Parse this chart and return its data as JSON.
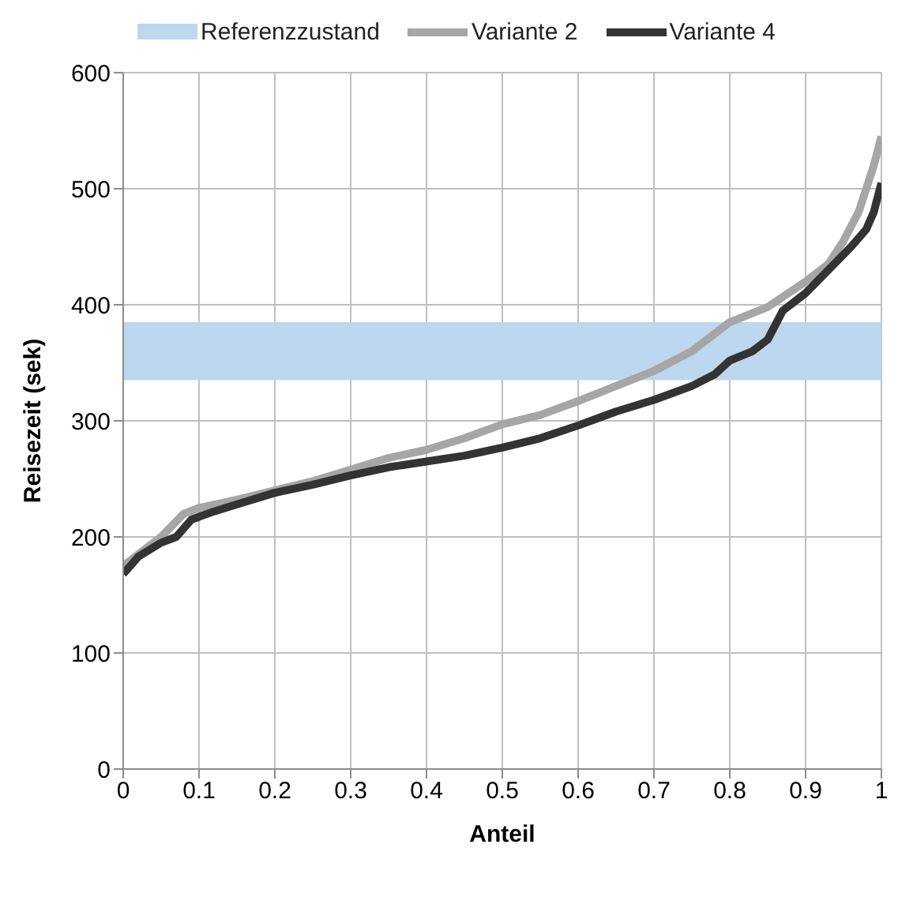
{
  "chart_data": {
    "type": "line",
    "xlabel": "Anteil",
    "ylabel": "Reisezeit  (sek)",
    "xlim": [
      0,
      1
    ],
    "xticks": [
      0,
      0.1,
      0.2,
      0.3,
      0.4,
      0.5,
      0.6,
      0.7,
      0.8,
      0.9,
      1
    ],
    "ylim": [
      0,
      600
    ],
    "yticks": [
      0,
      100,
      200,
      300,
      400,
      500,
      600
    ],
    "grid": true,
    "legend": "top",
    "marker": "none",
    "line_style": "solid",
    "bands": [
      {
        "axis": "y",
        "from": 335,
        "to": 385,
        "label": "Referenzzustand",
        "color": "#bdd7ee"
      }
    ],
    "series": [
      {
        "name": "Variante 2",
        "color": "#a6a6a6",
        "x": [
          0,
          0.02,
          0.05,
          0.08,
          0.1,
          0.15,
          0.2,
          0.25,
          0.3,
          0.35,
          0.4,
          0.45,
          0.5,
          0.55,
          0.6,
          0.65,
          0.7,
          0.75,
          0.78,
          0.8,
          0.85,
          0.9,
          0.93,
          0.95,
          0.97,
          0.99,
          1
        ],
        "values": [
          175,
          185,
          200,
          220,
          225,
          232,
          240,
          248,
          258,
          268,
          275,
          285,
          297,
          305,
          317,
          330,
          343,
          360,
          375,
          385,
          398,
          420,
          435,
          455,
          480,
          520,
          545
        ]
      },
      {
        "name": "Variante 4",
        "color": "#333333",
        "x": [
          0,
          0.02,
          0.05,
          0.07,
          0.09,
          0.12,
          0.15,
          0.2,
          0.25,
          0.3,
          0.35,
          0.4,
          0.45,
          0.5,
          0.55,
          0.6,
          0.65,
          0.7,
          0.75,
          0.78,
          0.8,
          0.83,
          0.85,
          0.87,
          0.9,
          0.93,
          0.96,
          0.98,
          0.99,
          1
        ],
        "values": [
          168,
          183,
          195,
          200,
          215,
          222,
          228,
          238,
          245,
          253,
          260,
          265,
          270,
          277,
          285,
          296,
          308,
          318,
          330,
          340,
          352,
          360,
          370,
          395,
          410,
          430,
          450,
          465,
          480,
          505
        ]
      }
    ]
  }
}
